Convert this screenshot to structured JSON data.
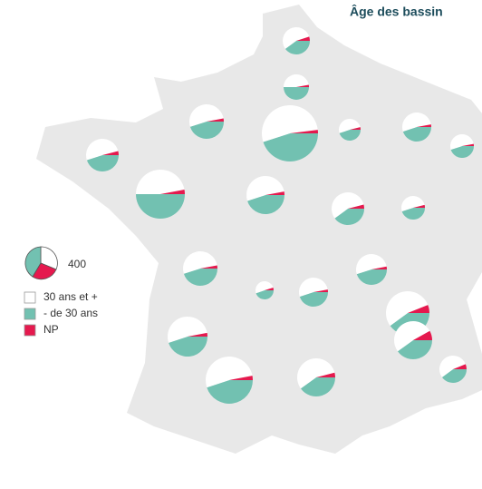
{
  "title": "Âge des bassin",
  "legend": {
    "size_value": 400,
    "items": [
      {
        "label": "30 ans et +",
        "color": "#ffffff"
      },
      {
        "label": "- de 30 ans",
        "color": "#72c1b1"
      },
      {
        "label": "NP",
        "color": "#e5194e"
      }
    ]
  },
  "pies": [
    {
      "values": [
        153,
        111,
        14
      ]
    },
    {
      "values": [
        114,
        121,
        7
      ]
    },
    {
      "values": [
        232,
        201,
        13
      ]
    },
    {
      "values": [
        628,
        534,
        24
      ]
    },
    {
      "values": [
        91,
        80,
        7
      ]
    },
    {
      "values": [
        165,
        142,
        9
      ]
    },
    {
      "values": [
        109,
        94,
        6
      ]
    },
    {
      "values": [
        204,
        180,
        16
      ]
    },
    {
      "values": [
        423,
        450,
        27
      ]
    },
    {
      "values": [
        283,
        245,
        16
      ]
    },
    {
      "values": [
        224,
        160,
        16
      ]
    },
    {
      "values": [
        107,
        94,
        8
      ]
    },
    {
      "values": [
        232,
        201,
        13
      ]
    },
    {
      "values": [
        62,
        55,
        6
      ]
    },
    {
      "values": [
        165,
        142,
        9
      ]
    },
    {
      "values": [
        185,
        161,
        11
      ]
    },
    {
      "values": [
        384,
        284,
        43
      ]
    },
    {
      "values": [
        311,
        269,
        18
      ]
    },
    {
      "values": [
        282,
        218,
        44
      ]
    },
    {
      "values": [
        150,
        111,
        17
      ]
    },
    {
      "values": [
        434,
        375,
        25
      ]
    },
    {
      "values": [
        304,
        218,
        22
      ]
    }
  ]
}
